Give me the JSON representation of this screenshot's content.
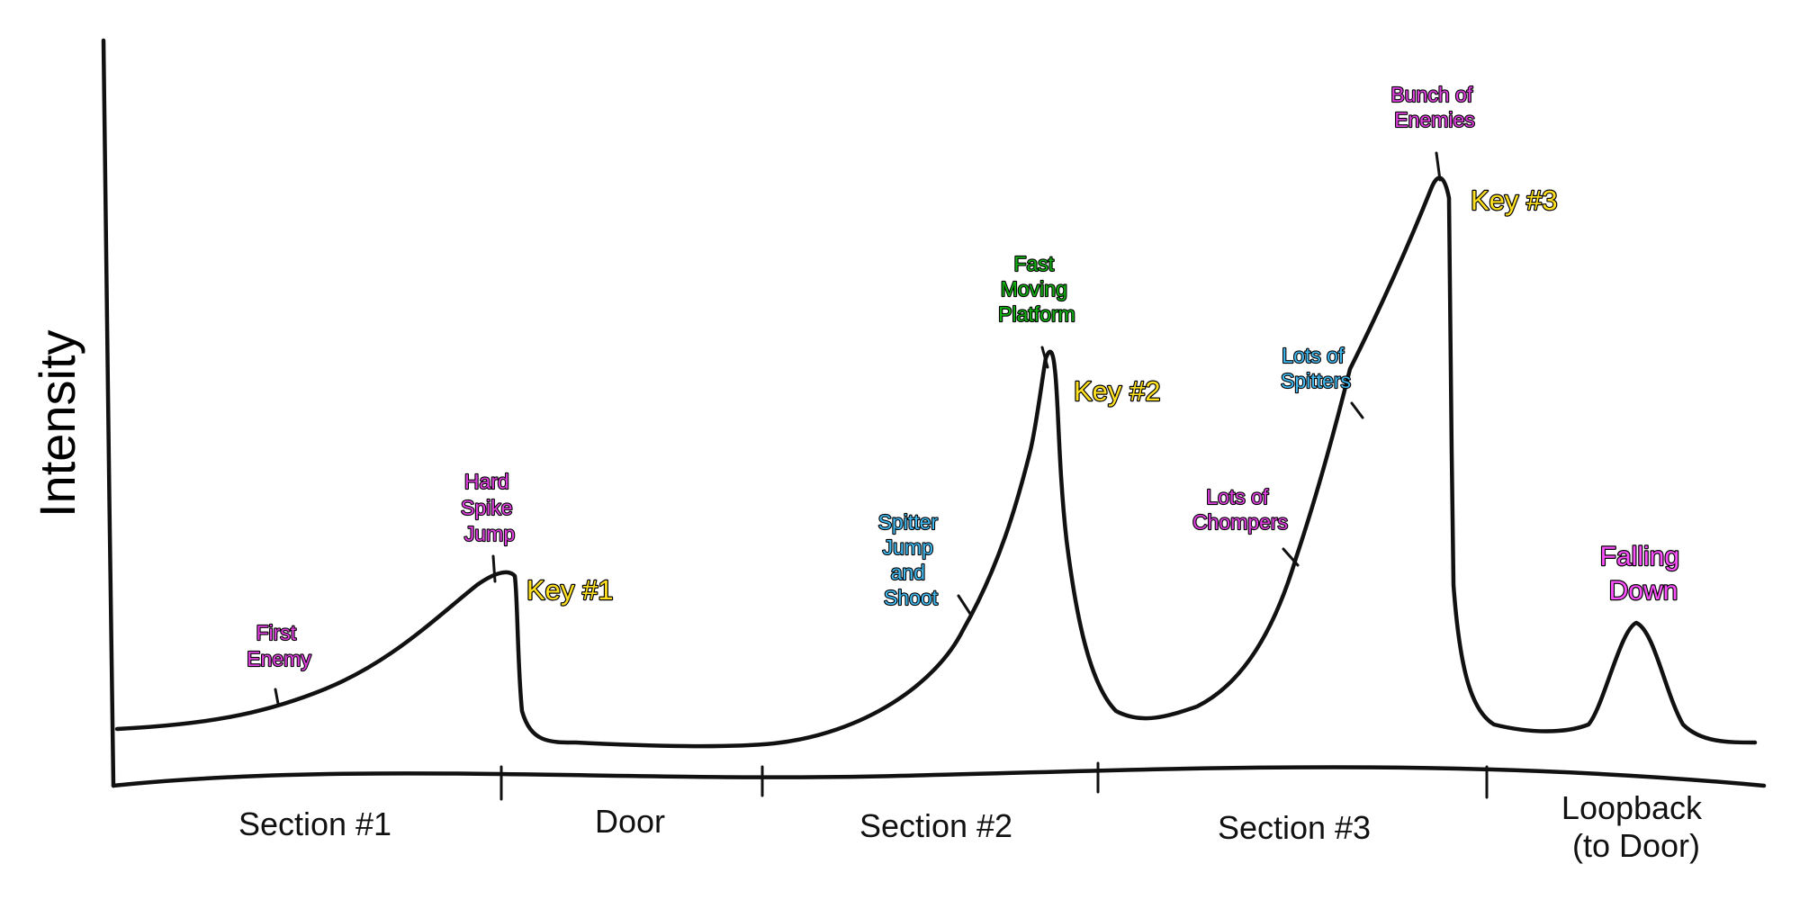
{
  "diagram": {
    "y_axis_label": "Intensity",
    "sections": [
      {
        "label": "Section #1"
      },
      {
        "label": "Door"
      },
      {
        "label": "Section #2"
      },
      {
        "label": "Section #3"
      },
      {
        "label_lines": [
          "Loopback",
          "(to Door)"
        ]
      }
    ],
    "annotations": [
      {
        "id": "first-enemy",
        "lines": [
          "First",
          "Enemy"
        ],
        "color": "#e040e0"
      },
      {
        "id": "hard-spike-jump",
        "lines": [
          "Hard",
          "Spike",
          "Jump"
        ],
        "color": "#e040e0"
      },
      {
        "id": "spitter-jump-and-shoot",
        "lines": [
          "Spitter",
          "Jump",
          "and",
          "Shoot"
        ],
        "color": "#40b8f0"
      },
      {
        "id": "fast-moving-platform",
        "lines": [
          "Fast",
          "Moving",
          "Platform"
        ],
        "color": "#10b010"
      },
      {
        "id": "lots-of-chompers",
        "lines": [
          "Lots of",
          "Chompers"
        ],
        "color": "#e040e0"
      },
      {
        "id": "lots-of-spitters",
        "lines": [
          "Lots of",
          "Spitters"
        ],
        "color": "#40b8f0"
      },
      {
        "id": "bunch-of-enemies",
        "lines": [
          "Bunch of",
          "Enemies"
        ],
        "color": "#e040e0"
      },
      {
        "id": "falling-down",
        "lines": [
          "Falling",
          "Down"
        ],
        "color": "#ff50ff"
      }
    ],
    "keys": [
      {
        "label": "Key #1"
      },
      {
        "label": "Key #2"
      },
      {
        "label": "Key #3"
      }
    ],
    "key_color": "#ffe020",
    "curve_color": "#111111"
  }
}
